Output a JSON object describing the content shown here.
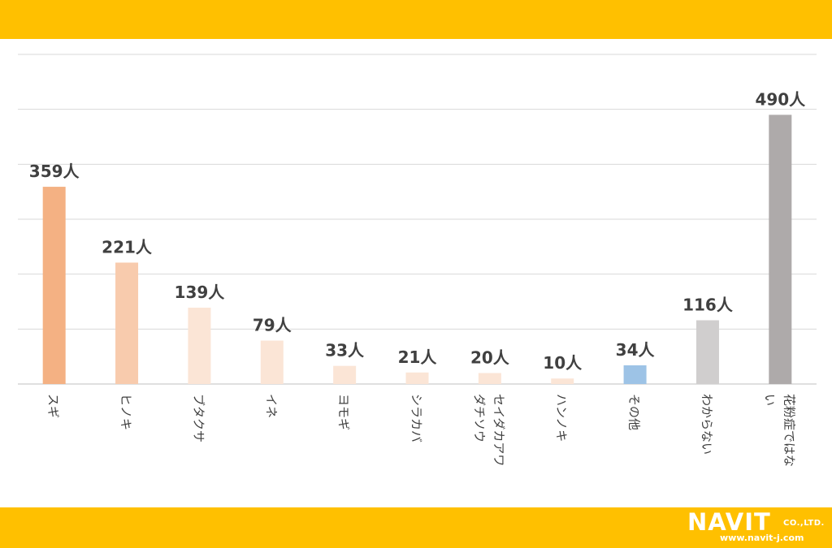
{
  "colors": {
    "band": "#FFC000",
    "grid": "#D9D9D9",
    "axis": "#BFBFBF",
    "label": "#404040"
  },
  "logo": {
    "name": "NAVIT",
    "company_suffix": "CO.,LTD.",
    "url": "www.navit-j.com"
  },
  "chart_data": {
    "type": "bar",
    "title": "",
    "xlabel": "",
    "ylabel": "",
    "ylim": [
      0,
      600
    ],
    "grid": true,
    "legend": "none",
    "categories": [
      "スギ",
      "ヒノキ",
      "ブタクサ",
      "イネ",
      "ヨモギ",
      "シラカバ",
      "セイダカアワダチソウ",
      "ハンノキ",
      "その他",
      "わからない",
      "花粉症ではない"
    ],
    "values": [
      359,
      221,
      139,
      79,
      33,
      21,
      20,
      10,
      34,
      116,
      490
    ],
    "value_labels": [
      "359人",
      "221人",
      "139人",
      "79人",
      "33人",
      "21人",
      "20人",
      "10人",
      "34人",
      "116人",
      "490人"
    ],
    "category_lines": [
      [
        "スギ"
      ],
      [
        "ヒノキ"
      ],
      [
        "ブタクサ"
      ],
      [
        "イネ"
      ],
      [
        "ヨモギ"
      ],
      [
        "シラカバ"
      ],
      [
        "セイダカアワ",
        "ダチソウ"
      ],
      [
        "ハンノキ"
      ],
      [
        "その他"
      ],
      [
        "わからない"
      ],
      [
        "花粉症ではな",
        "い"
      ]
    ],
    "bar_colors": [
      "#F4B183",
      "#F8CBAD",
      "#FBE5D6",
      "#FBE5D6",
      "#FBE5D6",
      "#FBE5D6",
      "#FBE5D6",
      "#FBE5D6",
      "#9DC3E6",
      "#D0CECE",
      "#AEAAAA"
    ]
  }
}
